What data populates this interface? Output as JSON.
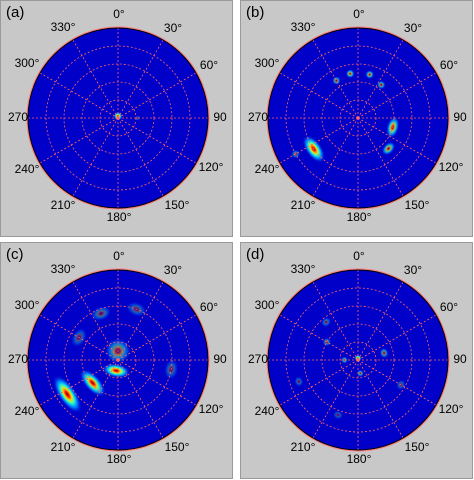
{
  "angle_labels": {
    "a0": "0°",
    "a30": "30°",
    "a60": "60°",
    "a90": "90",
    "a120": "120°",
    "a150": "150°",
    "a180": "180°",
    "a210": "210°",
    "a240": "240°",
    "a270": "270",
    "a300": "300°",
    "a330": "330°"
  },
  "colors": {
    "background": "#0000c8",
    "grid": "#ff6464",
    "rim": "#ff7f7f",
    "panel_bg": "#c8c8c8"
  },
  "panels": [
    {
      "label": "(a)",
      "blobs": [
        {
          "r": 0.02,
          "theta": 0,
          "intensity": 1.0,
          "size": 0.05,
          "elong": 1.0
        },
        {
          "r": 0.22,
          "theta": 90,
          "intensity": 0.35,
          "size": 0.03,
          "elong": 1.0
        }
      ]
    },
    {
      "label": "(b)",
      "blobs": [
        {
          "r": 0.48,
          "theta": 330,
          "intensity": 0.6,
          "size": 0.05,
          "elong": 1.0
        },
        {
          "r": 0.5,
          "theta": 350,
          "intensity": 0.75,
          "size": 0.05,
          "elong": 1.0
        },
        {
          "r": 0.5,
          "theta": 15,
          "intensity": 0.7,
          "size": 0.05,
          "elong": 1.0
        },
        {
          "r": 0.45,
          "theta": 35,
          "intensity": 0.6,
          "size": 0.05,
          "elong": 1.0
        },
        {
          "r": 0.4,
          "theta": 105,
          "intensity": 0.85,
          "size": 0.07,
          "elong": 1.8
        },
        {
          "r": 0.48,
          "theta": 135,
          "intensity": 0.75,
          "size": 0.06,
          "elong": 1.5
        },
        {
          "r": 0.6,
          "theta": 235,
          "intensity": 1.0,
          "size": 0.09,
          "elong": 2.0
        },
        {
          "r": 0.8,
          "theta": 240,
          "intensity": 0.45,
          "size": 0.05,
          "elong": 1.0
        }
      ]
    },
    {
      "label": "(c)",
      "blobs": [
        {
          "r": 0.12,
          "theta": 190,
          "intensity": 1.0,
          "size": 0.08,
          "elong": 2.0
        },
        {
          "r": 0.38,
          "theta": 228,
          "intensity": 0.95,
          "size": 0.09,
          "elong": 2.2
        },
        {
          "r": 0.68,
          "theta": 236,
          "intensity": 1.0,
          "size": 0.1,
          "elong": 2.5
        },
        {
          "r": 0.1,
          "theta": 0,
          "intensity": 0.55,
          "size": 0.15,
          "elong": 1.0
        },
        {
          "r": 0.55,
          "theta": 340,
          "intensity": 0.4,
          "size": 0.08,
          "elong": 1.5
        },
        {
          "r": 0.6,
          "theta": 20,
          "intensity": 0.35,
          "size": 0.08,
          "elong": 1.5
        },
        {
          "r": 0.6,
          "theta": 100,
          "intensity": 0.35,
          "size": 0.08,
          "elong": 1.5
        },
        {
          "r": 0.5,
          "theta": 300,
          "intensity": 0.35,
          "size": 0.08,
          "elong": 1.5
        }
      ]
    },
    {
      "label": "(d)",
      "blobs": [
        {
          "r": 0.02,
          "theta": 0,
          "intensity": 1.0,
          "size": 0.04,
          "elong": 1.0
        },
        {
          "r": 0.15,
          "theta": 270,
          "intensity": 0.6,
          "size": 0.04,
          "elong": 1.0
        },
        {
          "r": 0.15,
          "theta": 170,
          "intensity": 0.6,
          "size": 0.04,
          "elong": 1.0
        },
        {
          "r": 0.3,
          "theta": 75,
          "intensity": 0.55,
          "size": 0.05,
          "elong": 1.2
        },
        {
          "r": 0.4,
          "theta": 300,
          "intensity": 0.45,
          "size": 0.05,
          "elong": 1.0
        },
        {
          "r": 0.55,
          "theta": 320,
          "intensity": 0.4,
          "size": 0.05,
          "elong": 1.2
        },
        {
          "r": 0.7,
          "theta": 250,
          "intensity": 0.35,
          "size": 0.05,
          "elong": 1.2
        },
        {
          "r": 0.65,
          "theta": 200,
          "intensity": 0.3,
          "size": 0.05,
          "elong": 1.2
        },
        {
          "r": 0.55,
          "theta": 120,
          "intensity": 0.35,
          "size": 0.05,
          "elong": 1.2
        }
      ]
    }
  ]
}
